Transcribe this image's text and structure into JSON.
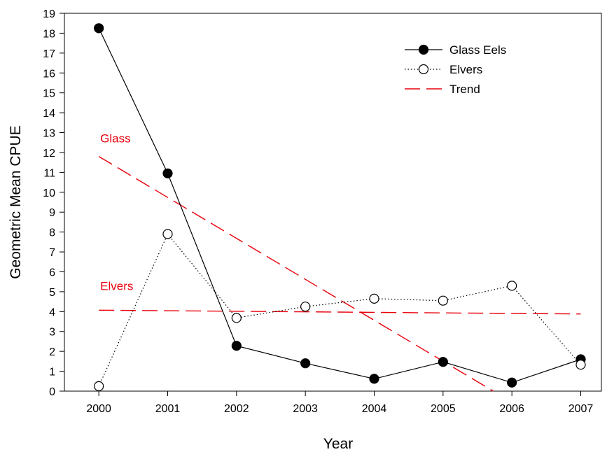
{
  "chart_data": {
    "type": "line",
    "xlabel": "Year",
    "ylabel": "Geometric Mean CPUE",
    "x": [
      2000,
      2001,
      2002,
      2003,
      2004,
      2005,
      2006,
      2007
    ],
    "xlim": [
      1999.5,
      2007.3
    ],
    "ylim": [
      0,
      19
    ],
    "yticks": [
      0,
      1,
      2,
      3,
      4,
      5,
      6,
      7,
      8,
      9,
      10,
      11,
      12,
      13,
      14,
      15,
      16,
      17,
      18,
      19
    ],
    "series": [
      {
        "name": "Glass Eels",
        "style": "solid-filled-circle",
        "color": "#000000",
        "values": [
          18.25,
          10.95,
          2.28,
          1.4,
          0.62,
          1.47,
          0.43,
          1.6
        ]
      },
      {
        "name": "Elvers",
        "style": "dotted-open-circle",
        "color": "#000000",
        "values": [
          0.25,
          7.9,
          3.68,
          4.25,
          4.65,
          4.55,
          5.3,
          1.33
        ]
      }
    ],
    "trends": [
      {
        "label": "Glass",
        "start": [
          2000,
          11.8
        ],
        "end": [
          2005.73,
          0
        ]
      },
      {
        "label": "Elvers",
        "start": [
          2000,
          4.07
        ],
        "end": [
          2007,
          3.88
        ]
      }
    ],
    "trend_legend": "Trend",
    "trend_color": "#e8000b",
    "legend_position": "top-right",
    "grid": false
  }
}
